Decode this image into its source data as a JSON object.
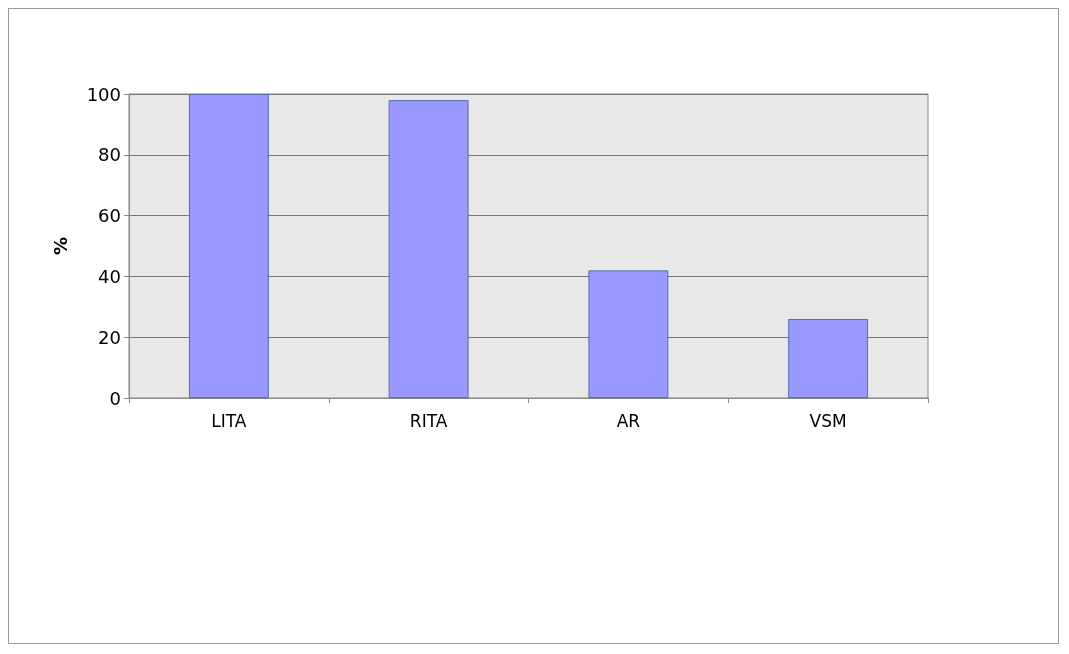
{
  "chart_data": {
    "type": "bar",
    "ylabel": "%",
    "categories": [
      "LITA",
      "RITA",
      "AR",
      "VSM"
    ],
    "values": [
      100,
      98,
      42,
      26
    ],
    "color": "#9999ff",
    "ylim": [
      0,
      100
    ],
    "yticks": [
      0,
      20,
      40,
      60,
      80,
      100
    ],
    "grid": "y"
  }
}
